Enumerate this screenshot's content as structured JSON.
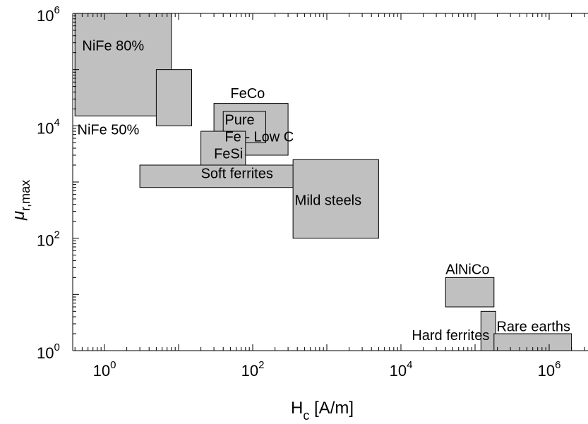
{
  "chart_data": {
    "type": "box-region",
    "xlabel_main": "H",
    "xlabel_sub": "c",
    "xlabel_rest": " [A/m]",
    "ylabel_main": "μ",
    "ylabel_sub": "r,max",
    "x_scale": "log",
    "y_scale": "log",
    "xlim": [
      0.4,
      3000000
    ],
    "ylim": [
      1,
      1000000
    ],
    "x_ticks": [
      {
        "value": 1,
        "base": "10",
        "exp": "0"
      },
      {
        "value": 100,
        "base": "10",
        "exp": "2"
      },
      {
        "value": 10000,
        "base": "10",
        "exp": "4"
      },
      {
        "value": 1000000,
        "base": "10",
        "exp": "6"
      }
    ],
    "y_ticks": [
      {
        "value": 1,
        "base": "10",
        "exp": "0"
      },
      {
        "value": 100,
        "base": "10",
        "exp": "2"
      },
      {
        "value": 10000,
        "base": "10",
        "exp": "4"
      },
      {
        "value": 1000000,
        "base": "10",
        "exp": "6"
      }
    ],
    "grid": false,
    "fill_color": "#c0c0c0",
    "regions": [
      {
        "name": "NiFe 80%",
        "x": [
          0.4,
          8
        ],
        "y": [
          15000,
          1000000
        ]
      },
      {
        "name": "NiFe 50%",
        "x": [
          5,
          15
        ],
        "y": [
          10000,
          100000
        ]
      },
      {
        "name": "FeCo",
        "x": [
          30,
          300
        ],
        "y": [
          3000,
          25000
        ]
      },
      {
        "name": "Pure Fe - Low C",
        "x": [
          40,
          150
        ],
        "y": [
          5000,
          18000
        ]
      },
      {
        "name": "FeSi",
        "x": [
          20,
          80
        ],
        "y": [
          2000,
          8000
        ]
      },
      {
        "name": "Soft ferrites",
        "x": [
          3,
          1000
        ],
        "y": [
          800,
          2000
        ]
      },
      {
        "name": "Mild steels",
        "x": [
          350,
          5000
        ],
        "y": [
          100,
          2500
        ]
      },
      {
        "name": "AlNiCo",
        "x": [
          40000,
          180000
        ],
        "y": [
          6,
          20
        ]
      },
      {
        "name": "Hard ferrites",
        "x": [
          120000,
          190000
        ],
        "y": [
          1,
          5
        ]
      },
      {
        "name": "Rare earths",
        "x": [
          180000,
          2000000
        ],
        "y": [
          1,
          2
        ]
      }
    ],
    "labels": [
      {
        "text": "NiFe 80%",
        "x": 0.5,
        "y": 220000
      },
      {
        "text": "NiFe 50%",
        "x": 0.43,
        "y": 7000
      },
      {
        "text": "FeCo",
        "x": 50,
        "y": 31000
      },
      {
        "text": "Pure",
        "x": 42,
        "y": 10500
      },
      {
        "text": "Fe - Low C",
        "x": 42,
        "y": 5300
      },
      {
        "text": "FeSi",
        "x": 30,
        "y": 2650
      },
      {
        "text": "Soft ferrites",
        "x": 20,
        "y": 1170
      },
      {
        "text": "Mild steels",
        "x": 370,
        "y": 390
      },
      {
        "text": "AlNiCo",
        "x": 40000,
        "y": 23.0
      },
      {
        "text": "Hard ferrites",
        "x": 14000,
        "y": 1.55
      },
      {
        "text": "Rare earths",
        "x": 195000,
        "y": 2.2
      }
    ]
  }
}
